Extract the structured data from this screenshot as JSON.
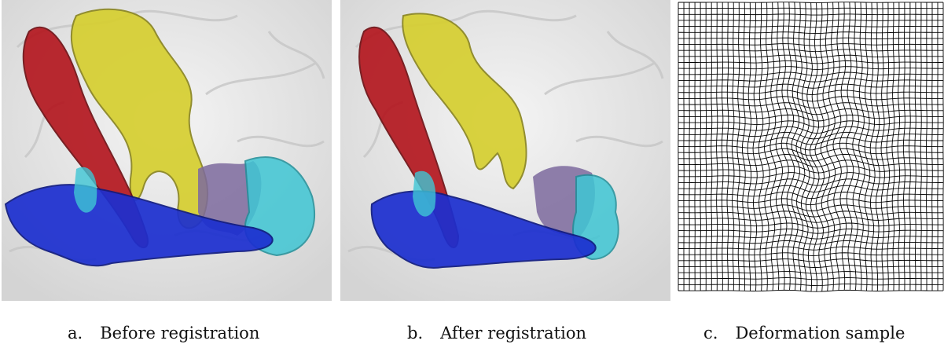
{
  "figure": {
    "panels": [
      {
        "letter": "a.",
        "caption": "Before registration"
      },
      {
        "letter": "b.",
        "caption": "After registration"
      },
      {
        "letter": "c.",
        "caption": "Deformation sample"
      }
    ]
  },
  "colors": {
    "background_mesh": "#e6e6e6",
    "tract_red": "#b3141c",
    "tract_yellow": "#d9d23a",
    "tract_blue": "#1c2fd0",
    "tract_cyan": "#3fc6d4",
    "tract_purple": "#7c6a9e",
    "grid_line": "#000000"
  }
}
